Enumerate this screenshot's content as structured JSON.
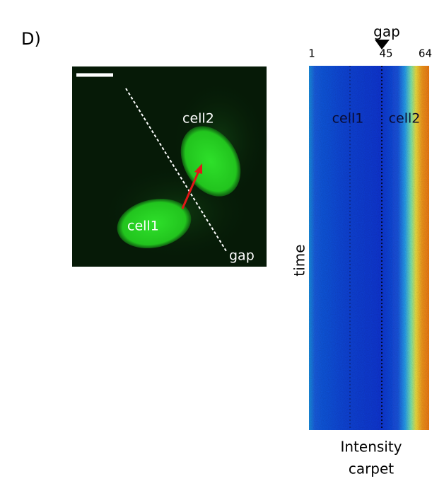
{
  "panel_label": "D)",
  "image": {
    "labels": {
      "cell2": "cell2",
      "cell1": "cell1",
      "gap": "gap"
    }
  },
  "carpet": {
    "gap_marker": "gap",
    "ticks": [
      "1",
      "45",
      "64"
    ],
    "cell_labels": [
      "cell1",
      "cell2"
    ],
    "y_label": "time",
    "caption": [
      "Intensity",
      "carpet"
    ]
  }
}
